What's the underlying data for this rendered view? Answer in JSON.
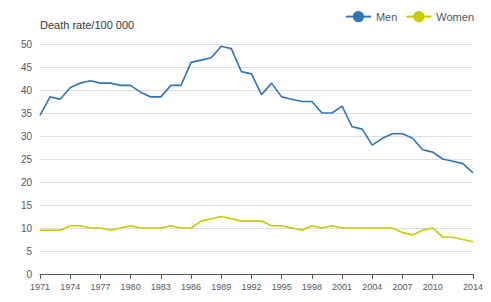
{
  "chart_data": {
    "type": "line",
    "ylabel": "Death rate/100 000",
    "x": [
      1971,
      1972,
      1973,
      1974,
      1975,
      1976,
      1977,
      1978,
      1979,
      1980,
      1981,
      1982,
      1983,
      1984,
      1985,
      1986,
      1987,
      1988,
      1989,
      1990,
      1991,
      1992,
      1993,
      1994,
      1995,
      1996,
      1997,
      1998,
      1999,
      2000,
      2001,
      2002,
      2003,
      2004,
      2005,
      2006,
      2007,
      2008,
      2009,
      2010,
      2011,
      2012,
      2013,
      2014
    ],
    "series": [
      {
        "name": "Men",
        "color": "#2E75B6",
        "values": [
          34.5,
          38.5,
          38.0,
          40.5,
          41.5,
          42.0,
          41.5,
          41.5,
          41.0,
          41.0,
          39.5,
          38.5,
          38.5,
          41.0,
          41.0,
          46.0,
          46.5,
          47.0,
          49.5,
          49.0,
          44.0,
          43.5,
          39.0,
          41.5,
          38.5,
          38.0,
          37.5,
          37.5,
          35.0,
          35.0,
          36.5,
          32.0,
          31.5,
          28.0,
          29.5,
          30.5,
          30.5,
          29.5,
          27.0,
          26.5,
          25.0,
          24.5,
          24.0,
          22.0
        ]
      },
      {
        "name": "Women",
        "color": "#C9C900",
        "values": [
          9.5,
          9.5,
          9.5,
          10.5,
          10.5,
          10.0,
          10.0,
          9.5,
          10.0,
          10.5,
          10.0,
          10.0,
          10.0,
          10.5,
          10.0,
          10.0,
          11.5,
          12.0,
          12.5,
          12.0,
          11.5,
          11.5,
          11.5,
          10.5,
          10.5,
          10.0,
          9.5,
          10.5,
          10.0,
          10.5,
          10.0,
          10.0,
          10.0,
          10.0,
          10.0,
          10.0,
          9.0,
          8.5,
          9.5,
          10.0,
          8.0,
          8.0,
          7.5,
          7.0
        ]
      }
    ],
    "xlim": [
      1971,
      2014
    ],
    "xticks": [
      1971,
      1974,
      1977,
      1980,
      1983,
      1986,
      1989,
      1992,
      1995,
      1998,
      2001,
      2004,
      2007,
      2010,
      2014
    ],
    "ylim": [
      0,
      50
    ],
    "yticks": [
      0,
      5,
      10,
      15,
      20,
      25,
      30,
      35,
      40,
      45,
      50
    ],
    "grid": true,
    "legend": "upper right"
  }
}
